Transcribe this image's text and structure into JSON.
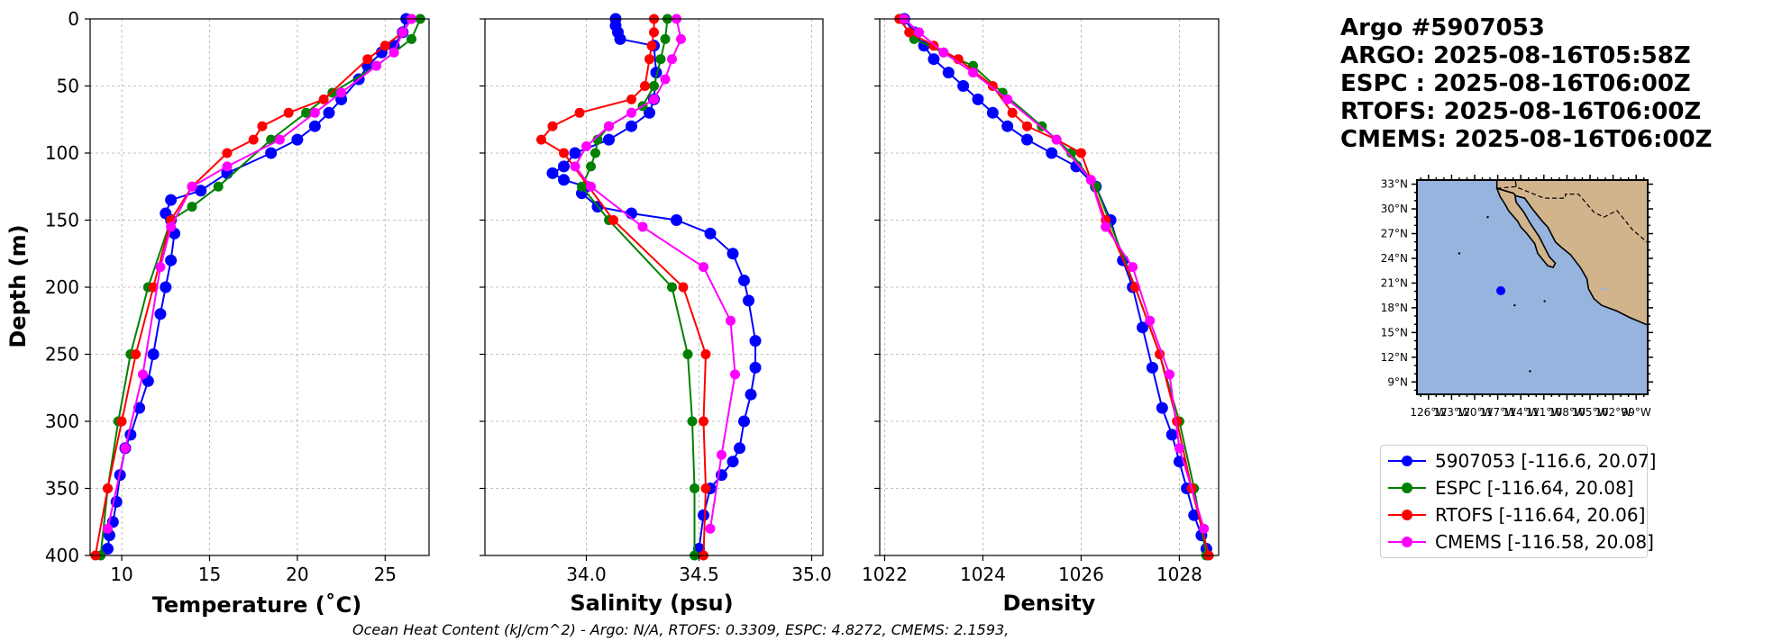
{
  "title": {
    "argo_id": "Argo #5907053",
    "argo_time": "ARGO: 2025-08-16T05:58Z",
    "espc_time": "ESPC : 2025-08-16T06:00Z",
    "rtofs_time": "RTOFS: 2025-08-16T06:00Z",
    "cmems_time": "CMEMS: 2025-08-16T06:00Z"
  },
  "footer": "Ocean Heat Content (kJ/cm^2) - Argo: N/A,  RTOFS: 0.3309,  ESPC: 4.8272,  CMEMS: 2.1593,",
  "colors": {
    "argo": "#0000ff",
    "espc": "#008000",
    "rtofs": "#ff0000",
    "cmems": "#ff00ff",
    "ocean": "#96b4de",
    "land": "#d2b48c"
  },
  "legend": [
    {
      "label": "5907053 [-116.6, 20.07]",
      "color": "#0000ff"
    },
    {
      "label": "ESPC [-116.64, 20.08]",
      "color": "#008000"
    },
    {
      "label": "RTOFS [-116.64, 20.06]",
      "color": "#ff0000"
    },
    {
      "label": "CMEMS [-116.58, 20.08]",
      "color": "#ff00ff"
    }
  ],
  "chart_data": [
    {
      "type": "line",
      "title": "",
      "xlabel": "Temperature (˚C)",
      "ylabel": "Depth (m)",
      "xlim": [
        8.2,
        27.5
      ],
      "ylim": [
        400,
        0
      ],
      "xticks": [
        10,
        15,
        20,
        25
      ],
      "yticks": [
        0,
        50,
        100,
        150,
        200,
        250,
        300,
        350,
        400
      ],
      "grid": true,
      "series": [
        {
          "name": "5907053",
          "marker_size": "large",
          "x": [
            26.2,
            26.0,
            25.5,
            24.8,
            24.0,
            23.5,
            22.5,
            21.8,
            21.0,
            20.0,
            18.5,
            16.0,
            14.5,
            12.8,
            12.5,
            12.8,
            13.0,
            12.8,
            12.5,
            12.2,
            11.8,
            11.5,
            11.0,
            10.5,
            10.2,
            9.9,
            9.7,
            9.5,
            9.3,
            9.2
          ],
          "y": [
            0,
            10,
            20,
            25,
            35,
            45,
            60,
            70,
            80,
            90,
            100,
            115,
            128,
            135,
            145,
            150,
            160,
            180,
            200,
            220,
            250,
            270,
            290,
            310,
            320,
            340,
            360,
            375,
            385,
            395
          ]
        },
        {
          "name": "ESPC",
          "x": [
            27.0,
            26.5,
            25.5,
            24.5,
            22.0,
            20.5,
            18.5,
            15.5,
            14.0,
            12.8,
            11.5,
            10.5,
            9.8,
            9.2,
            8.8
          ],
          "y": [
            0,
            15,
            25,
            35,
            55,
            70,
            90,
            125,
            140,
            150,
            200,
            250,
            300,
            350,
            400
          ]
        },
        {
          "name": "RTOFS",
          "x": [
            26.5,
            26.0,
            25.0,
            24.0,
            21.5,
            19.5,
            18.0,
            17.5,
            16.0,
            14.0,
            12.8,
            11.8,
            10.8,
            10.0,
            9.2,
            8.5
          ],
          "y": [
            0,
            10,
            20,
            30,
            60,
            70,
            80,
            90,
            100,
            125,
            150,
            200,
            250,
            300,
            350,
            400
          ]
        },
        {
          "name": "CMEMS",
          "x": [
            26.5,
            26.0,
            25.5,
            24.5,
            22.5,
            21.0,
            19.0,
            16.0,
            14.0,
            12.8,
            12.2,
            11.2,
            10.2,
            9.2
          ],
          "y": [
            0,
            10,
            25,
            35,
            55,
            70,
            90,
            110,
            125,
            155,
            185,
            265,
            320,
            380
          ]
        }
      ]
    },
    {
      "type": "line",
      "title": "",
      "xlabel": "Salinity (psu)",
      "ylabel": "",
      "xlim": [
        33.55,
        35.05
      ],
      "ylim": [
        400,
        0
      ],
      "xticks": [
        34.0,
        34.5,
        35.0
      ],
      "yticks": [
        0,
        50,
        100,
        150,
        200,
        250,
        300,
        350,
        400
      ],
      "grid": true,
      "series": [
        {
          "name": "5907053",
          "marker_size": "large",
          "x": [
            34.13,
            34.13,
            34.14,
            34.15,
            34.3,
            34.31,
            34.3,
            34.28,
            34.2,
            34.1,
            33.95,
            33.9,
            33.85,
            33.9,
            34.0,
            33.98,
            34.05,
            34.2,
            34.4,
            34.55,
            34.65,
            34.7,
            34.72,
            34.75,
            34.75,
            34.73,
            34.7,
            34.68,
            34.65,
            34.6,
            34.55,
            34.52,
            34.5
          ],
          "y": [
            0,
            5,
            10,
            15,
            20,
            40,
            60,
            70,
            80,
            90,
            100,
            110,
            115,
            120,
            125,
            130,
            140,
            145,
            150,
            160,
            175,
            195,
            210,
            240,
            260,
            280,
            300,
            320,
            330,
            340,
            350,
            370,
            395
          ]
        },
        {
          "name": "ESPC",
          "x": [
            34.36,
            34.35,
            34.33,
            34.3,
            34.25,
            34.1,
            34.05,
            34.04,
            34.02,
            33.98,
            34.1,
            34.38,
            34.45,
            34.47,
            34.48,
            34.48
          ],
          "y": [
            0,
            15,
            30,
            50,
            65,
            80,
            90,
            100,
            110,
            125,
            150,
            200,
            250,
            300,
            350,
            400
          ]
        },
        {
          "name": "RTOFS",
          "x": [
            34.3,
            34.3,
            34.29,
            34.28,
            34.26,
            34.2,
            33.97,
            33.85,
            33.8,
            33.9,
            34.12,
            34.43,
            34.53,
            34.52,
            34.53,
            34.52
          ],
          "y": [
            0,
            10,
            20,
            30,
            50,
            60,
            70,
            80,
            90,
            100,
            150,
            200,
            250,
            300,
            350,
            400
          ]
        },
        {
          "name": "CMEMS",
          "x": [
            34.4,
            34.42,
            34.38,
            34.35,
            34.3,
            34.2,
            34.1,
            34.0,
            33.95,
            34.02,
            34.25,
            34.52,
            34.64,
            34.66,
            34.6,
            34.55
          ],
          "y": [
            0,
            15,
            30,
            45,
            60,
            70,
            80,
            95,
            110,
            125,
            155,
            185,
            225,
            265,
            325,
            380
          ]
        }
      ]
    },
    {
      "type": "line",
      "title": "",
      "xlabel": "Density",
      "ylabel": "",
      "xlim": [
        1021.9,
        1028.8
      ],
      "ylim": [
        400,
        0
      ],
      "xticks": [
        1022,
        1024,
        1026,
        1028
      ],
      "yticks": [
        0,
        50,
        100,
        150,
        200,
        250,
        300,
        350,
        400
      ],
      "grid": true,
      "series": [
        {
          "name": "5907053",
          "marker_size": "large",
          "x": [
            1022.4,
            1022.6,
            1022.8,
            1023.0,
            1023.3,
            1023.6,
            1023.9,
            1024.2,
            1024.5,
            1024.9,
            1025.4,
            1025.9,
            1026.3,
            1026.6,
            1026.85,
            1027.05,
            1027.25,
            1027.45,
            1027.65,
            1027.85,
            1028.0,
            1028.15,
            1028.3,
            1028.45,
            1028.55
          ],
          "y": [
            0,
            10,
            20,
            30,
            40,
            50,
            60,
            70,
            80,
            90,
            100,
            110,
            125,
            150,
            180,
            200,
            230,
            260,
            290,
            310,
            330,
            350,
            370,
            385,
            395
          ]
        },
        {
          "name": "ESPC",
          "x": [
            1022.3,
            1022.6,
            1023.2,
            1023.8,
            1024.4,
            1025.2,
            1025.8,
            1026.3,
            1027.1,
            1027.6,
            1028.0,
            1028.3,
            1028.55
          ],
          "y": [
            0,
            15,
            25,
            35,
            55,
            80,
            100,
            125,
            200,
            250,
            300,
            350,
            400
          ]
        },
        {
          "name": "RTOFS",
          "x": [
            1022.3,
            1022.5,
            1023.0,
            1023.5,
            1024.2,
            1024.6,
            1024.9,
            1025.5,
            1026.0,
            1026.5,
            1027.1,
            1027.6,
            1027.95,
            1028.25,
            1028.6
          ],
          "y": [
            0,
            10,
            20,
            30,
            50,
            70,
            80,
            90,
            100,
            150,
            200,
            250,
            300,
            350,
            400
          ]
        },
        {
          "name": "CMEMS",
          "x": [
            1022.4,
            1022.7,
            1023.2,
            1023.8,
            1024.5,
            1025.5,
            1026.2,
            1026.5,
            1027.05,
            1027.4,
            1027.8,
            1028.0,
            1028.5
          ],
          "y": [
            0,
            10,
            25,
            40,
            60,
            90,
            120,
            155,
            185,
            225,
            265,
            320,
            380
          ]
        }
      ]
    }
  ],
  "map": {
    "lat_labels": [
      "33°N",
      "30°N",
      "27°N",
      "24°N",
      "21°N",
      "18°N",
      "15°N",
      "12°N",
      "9°N"
    ],
    "lon_labels": [
      "126°W",
      "123°W",
      "120°W",
      "117°W",
      "114°W",
      "111°W",
      "108°W",
      "105°W",
      "102°W",
      "99°W"
    ],
    "lon_range": [
      -127.5,
      -97.5
    ],
    "lat_range": [
      7.5,
      33.5
    ],
    "argo_location": {
      "lon": -116.6,
      "lat": 20.07
    }
  }
}
